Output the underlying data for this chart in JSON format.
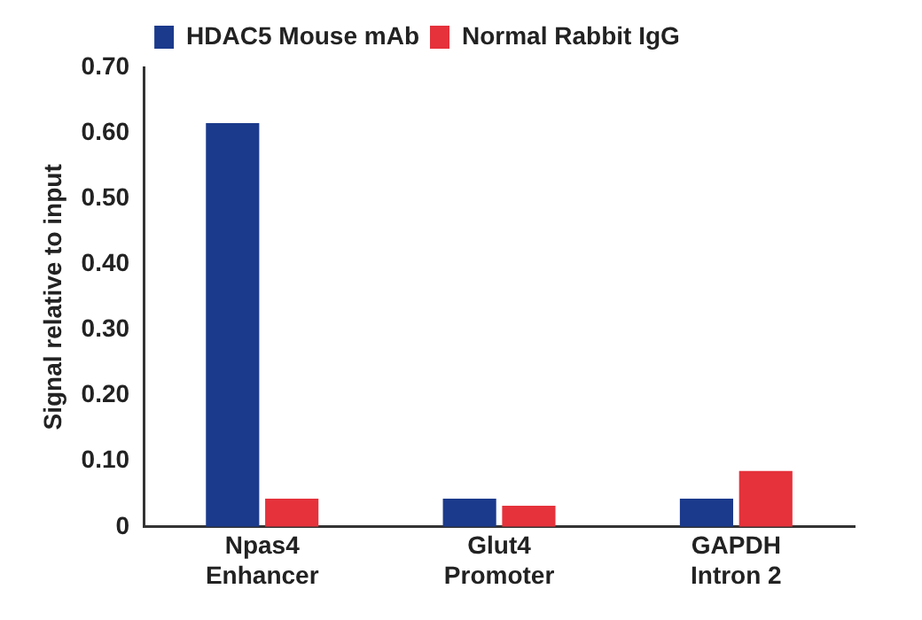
{
  "chart_data": {
    "type": "bar",
    "ylabel": "Signal relative to input",
    "categories": [
      "Npas4 Enhancer",
      "Glut4 Promoter",
      "GAPDH Intron 2"
    ],
    "series": [
      {
        "name": "HDAC5 Mouse mAb",
        "color": "#1b3a8c",
        "values": [
          0.615,
          0.043,
          0.043
        ]
      },
      {
        "name": "Normal Rabbit IgG",
        "color": "#e5323b",
        "values": [
          0.043,
          0.032,
          0.085
        ]
      }
    ],
    "ylim": [
      0,
      0.7
    ],
    "yticks": [
      0,
      {
        "value": 0.1,
        "label": "0.10"
      },
      {
        "value": 0.2,
        "label": "0.20"
      },
      {
        "value": 0.3,
        "label": "0.30"
      },
      {
        "value": 0.4,
        "label": "0.40"
      },
      {
        "value": 0.5,
        "label": "0.50"
      },
      {
        "value": 0.6,
        "label": "0.60"
      },
      {
        "value": 0.7,
        "label": "0.70"
      }
    ],
    "grid": false,
    "legend": "top left"
  }
}
